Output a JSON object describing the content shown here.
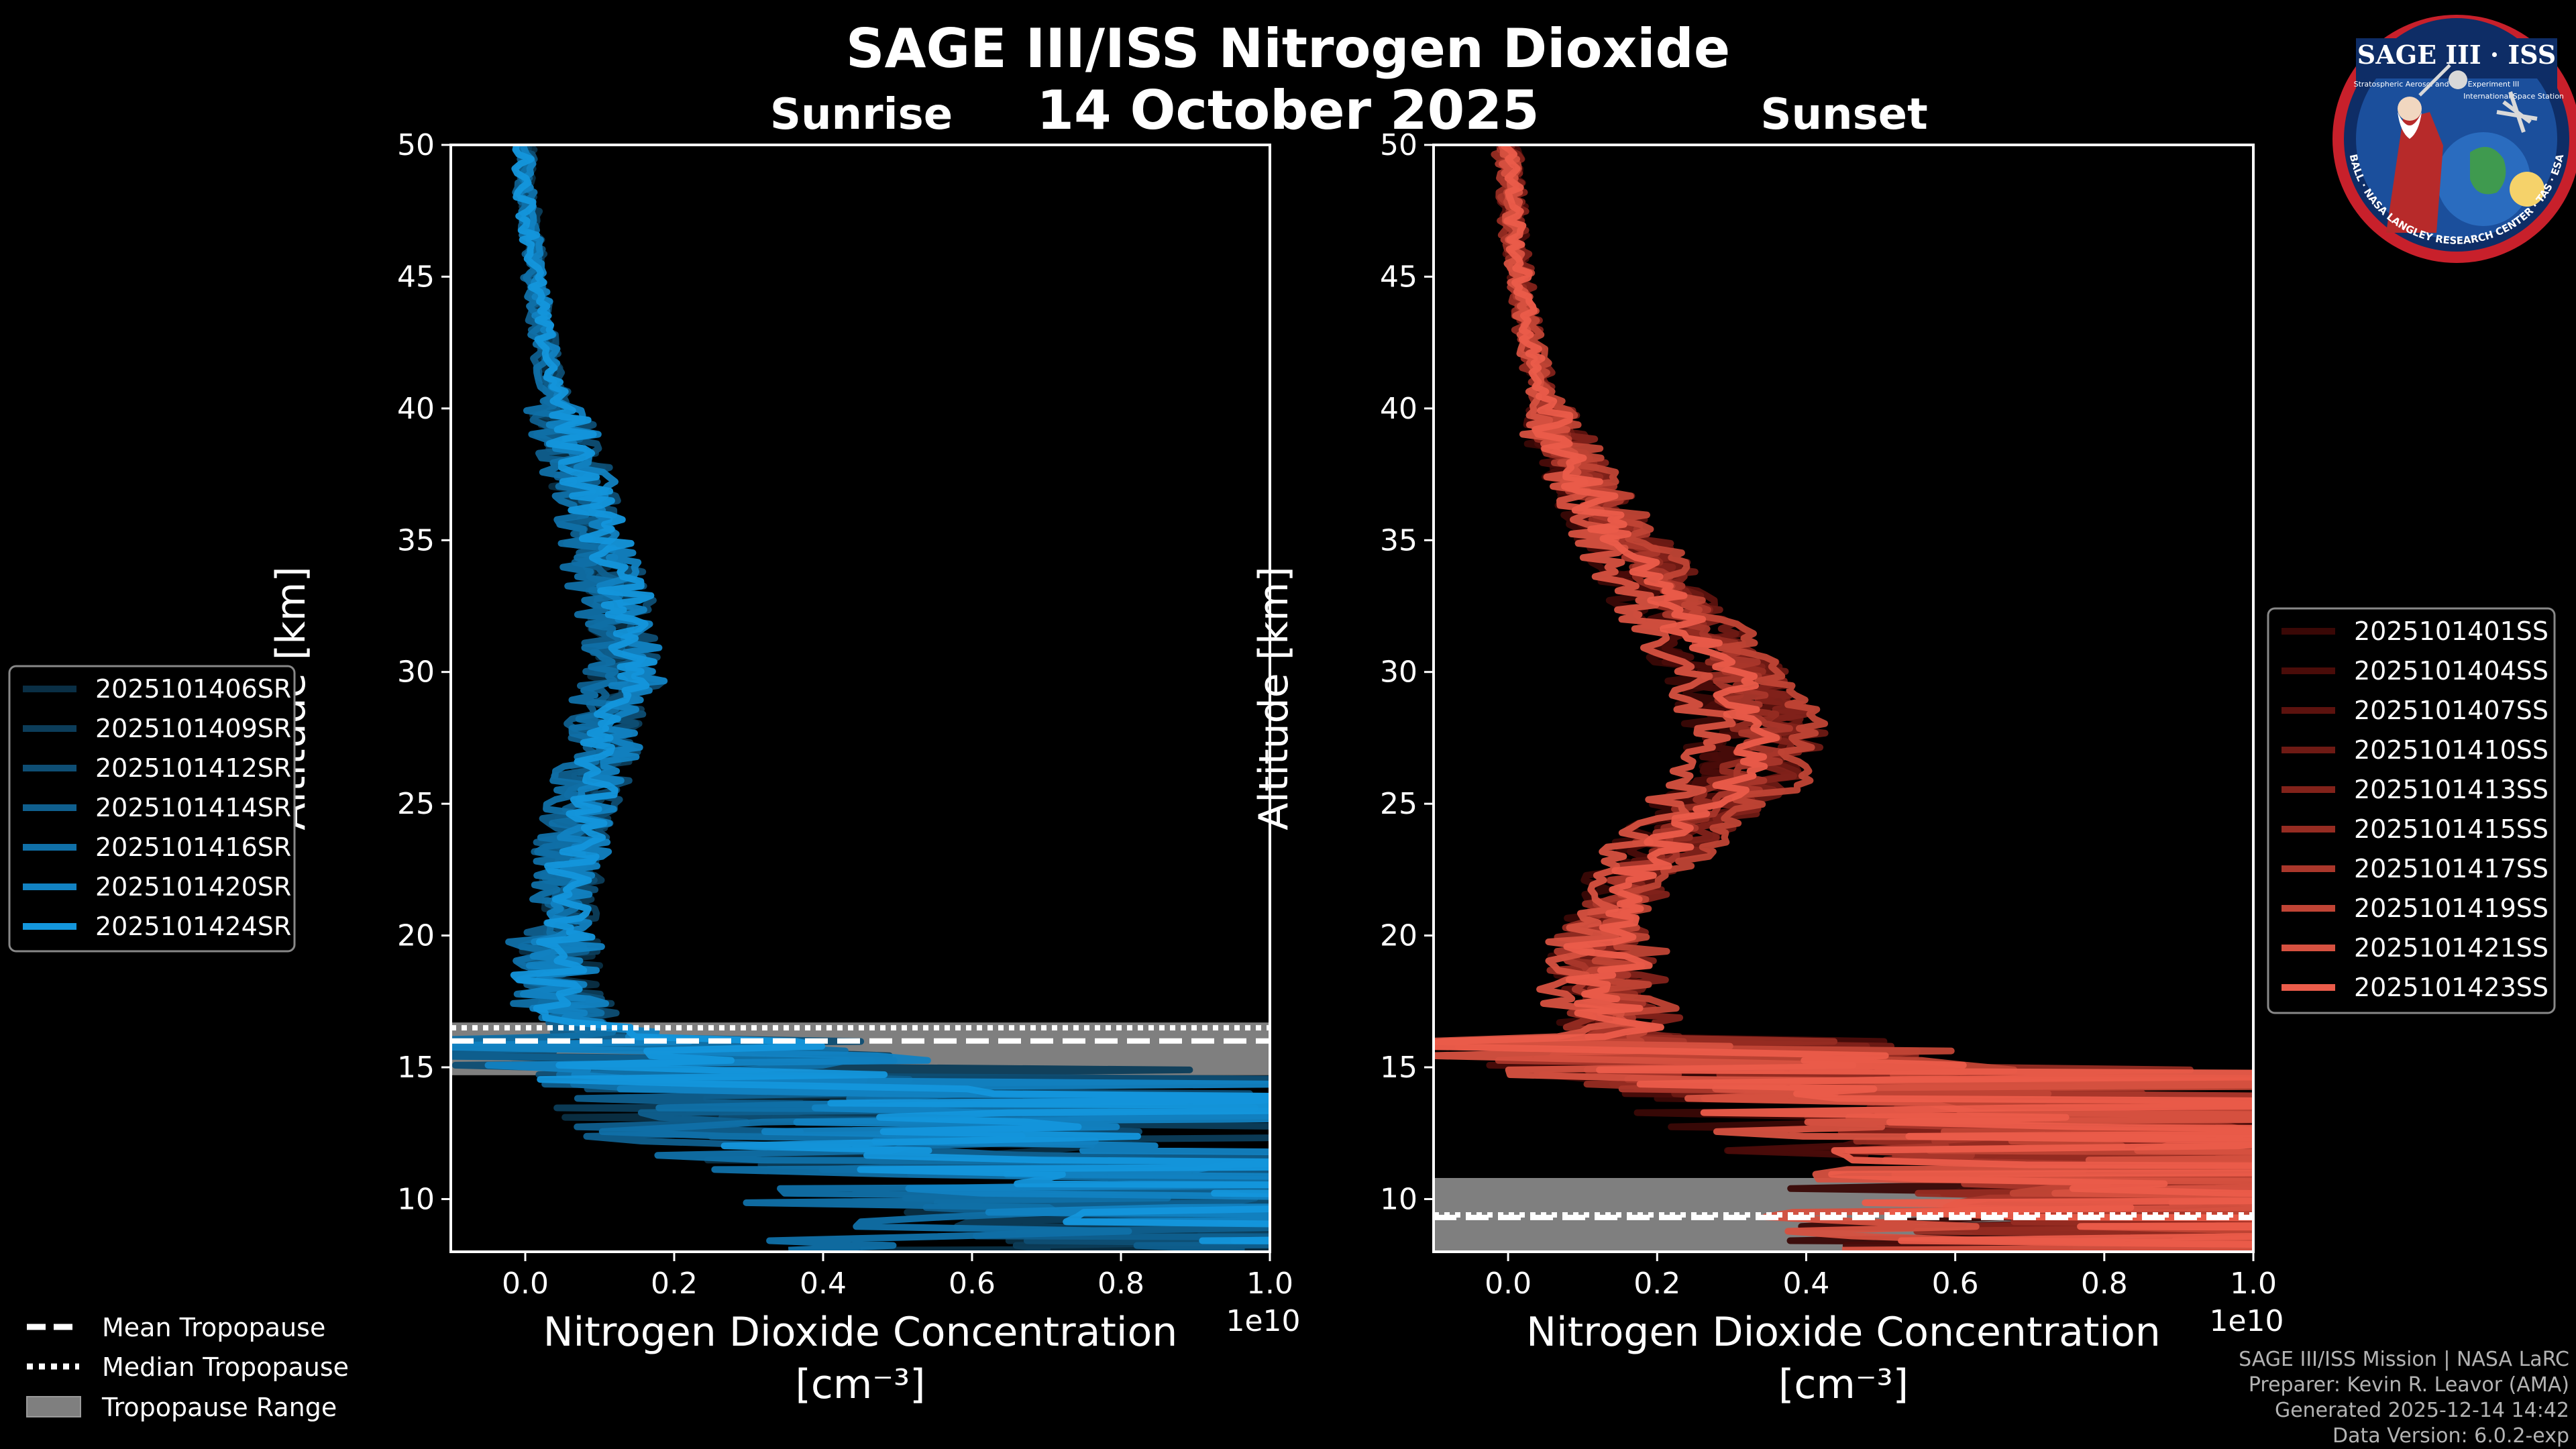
{
  "title": "SAGE III/ISS Nitrogen Dioxide",
  "subtitle": "14 October 2025",
  "logo": {
    "title": "SAGE III · ISS",
    "ring_text": "BALL · NASA LANGLEY RESEARCH CENTER · TAS · ESA",
    "inner_text": "Stratospheric Aerosol and Gas Experiment III",
    "inner_text_2": "International Space Station"
  },
  "credits": [
    "SAGE III/ISS Mission | NASA LaRC",
    "Preparer: Kevin R. Leavor (AMA)",
    "Generated 2025-12-14 14:42",
    "Data Version: 6.0.2-exp"
  ],
  "tropopause_legend": [
    {
      "label": "Mean Tropopause",
      "style": "dashed"
    },
    {
      "label": "Median Tropopause",
      "style": "dotted"
    },
    {
      "label": "Tropopause Range",
      "style": "band"
    }
  ],
  "colors": {
    "sunrise": [
      "#0a2f45",
      "#0c3d5a",
      "#0e4e74",
      "#0f5f8e",
      "#1070a8",
      "#1282c2",
      "#1496dc"
    ],
    "sunset": [
      "#3a0806",
      "#4a0c09",
      "#5c120e",
      "#6e1a14",
      "#82221a",
      "#962c22",
      "#aa372b",
      "#c04435",
      "#d65140",
      "#eb5c4a"
    ],
    "band": "#7f7f7f"
  },
  "chart_data": [
    {
      "type": "line",
      "title": "Sunrise",
      "xlabel": "Nitrogen Dioxide Concentration",
      "xlabel_units": "[cm⁻³]",
      "ylabel": "Altitude [km]",
      "offset_text": "1e10",
      "xlim": [
        -0.1,
        1.0
      ],
      "ylim": [
        8,
        50
      ],
      "xticks": [
        "0.0",
        "0.2",
        "0.4",
        "0.6",
        "0.8",
        "1.0"
      ],
      "xtick_values": [
        0.0,
        0.2,
        0.4,
        0.6,
        0.8,
        1.0
      ],
      "yticks": [
        10,
        15,
        20,
        25,
        30,
        35,
        40,
        45,
        50
      ],
      "mean_tropopause": 16.0,
      "median_tropopause": 16.5,
      "tropopause_range": [
        14.7,
        16.7
      ],
      "series": [
        {
          "name": "2025101406SR"
        },
        {
          "name": "2025101409SR"
        },
        {
          "name": "2025101412SR"
        },
        {
          "name": "2025101414SR"
        },
        {
          "name": "2025101416SR"
        },
        {
          "name": "2025101420SR"
        },
        {
          "name": "2025101424SR"
        }
      ],
      "mean_profile": {
        "altitude": [
          50,
          48,
          46,
          44,
          42,
          40,
          38,
          36,
          34,
          32,
          30,
          28,
          26,
          24,
          22,
          20,
          18,
          17,
          16,
          15,
          14,
          13,
          12,
          11,
          10,
          9
        ],
        "value": [
          -0.003,
          0.0,
          0.008,
          0.015,
          0.025,
          0.04,
          0.06,
          0.08,
          0.1,
          0.12,
          0.12,
          0.1,
          0.08,
          0.06,
          0.05,
          0.04,
          0.03,
          0.05,
          0.12,
          0.2,
          0.3,
          0.4,
          0.5,
          0.6,
          0.7,
          0.8
        ]
      }
    },
    {
      "type": "line",
      "title": "Sunset",
      "xlabel": "Nitrogen Dioxide Concentration",
      "xlabel_units": "[cm⁻³]",
      "ylabel": "Altitude [km]",
      "offset_text": "1e10",
      "xlim": [
        -0.1,
        1.0
      ],
      "ylim": [
        8,
        50
      ],
      "xticks": [
        "0.0",
        "0.2",
        "0.4",
        "0.6",
        "0.8",
        "1.0"
      ],
      "xtick_values": [
        0.0,
        0.2,
        0.4,
        0.6,
        0.8,
        1.0
      ],
      "yticks": [
        10,
        15,
        20,
        25,
        30,
        35,
        40,
        45,
        50
      ],
      "mean_tropopause": 9.3,
      "median_tropopause": 9.4,
      "tropopause_range": [
        8.0,
        10.8
      ],
      "series": [
        {
          "name": "2025101401SS"
        },
        {
          "name": "2025101404SS"
        },
        {
          "name": "2025101407SS"
        },
        {
          "name": "2025101410SS"
        },
        {
          "name": "2025101413SS"
        },
        {
          "name": "2025101415SS"
        },
        {
          "name": "2025101417SS"
        },
        {
          "name": "2025101419SS"
        },
        {
          "name": "2025101421SS"
        },
        {
          "name": "2025101423SS"
        }
      ],
      "mean_profile": {
        "altitude": [
          50,
          48,
          46,
          44,
          42,
          40,
          38,
          36,
          34,
          32,
          30,
          28,
          26,
          24,
          22,
          20,
          18,
          16,
          15,
          14,
          13,
          12,
          11,
          10,
          9
        ],
        "value": [
          0.0,
          0.005,
          0.01,
          0.02,
          0.03,
          0.05,
          0.08,
          0.12,
          0.17,
          0.22,
          0.28,
          0.32,
          0.3,
          0.22,
          0.15,
          0.12,
          0.12,
          0.15,
          0.3,
          0.45,
          0.6,
          0.7,
          0.75,
          0.8,
          0.8
        ]
      }
    }
  ]
}
